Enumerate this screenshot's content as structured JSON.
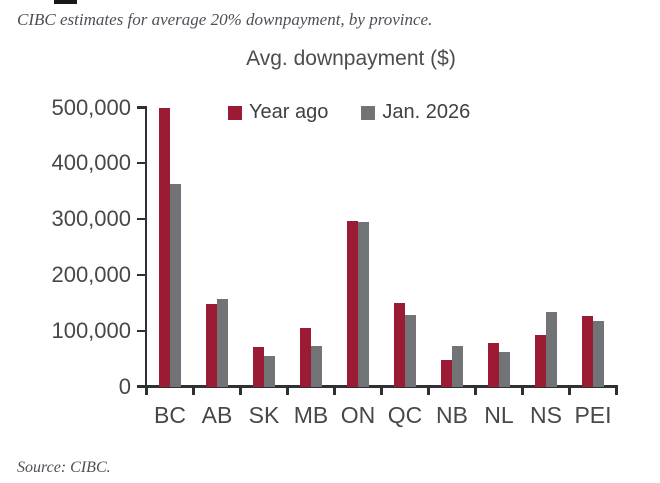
{
  "subtitle": "CIBC estimates for average 20% downpayment, by province.",
  "source_note": "Source: CIBC.",
  "colors": {
    "series_year_ago": "#9a1b33",
    "series_jan_2026": "#727376",
    "axis": "#2f3033",
    "label_text": "#47484b",
    "note_text": "#4b5057",
    "background": "#ffffff"
  },
  "chart_data": {
    "type": "bar",
    "title": "Avg. downpayment ($)",
    "categories": [
      "BC",
      "AB",
      "SK",
      "MB",
      "ON",
      "QC",
      "NB",
      "NL",
      "NS",
      "PEI"
    ],
    "series": [
      {
        "name": "Year ago",
        "color": "#9a1b33",
        "values": [
          500000,
          149000,
          72000,
          106000,
          298000,
          151000,
          48000,
          79000,
          94000,
          128000
        ]
      },
      {
        "name": "Jan. 2026",
        "color": "#727376",
        "values": [
          363000,
          157000,
          56000,
          74000,
          296000,
          129000,
          73000,
          63000,
          135000,
          119000
        ]
      }
    ],
    "xlabel": "",
    "ylabel": "",
    "ylim": [
      0,
      500000
    ],
    "ytick_step": 100000,
    "ytick_labels": [
      "0",
      "100,000",
      "200,000",
      "300,000",
      "400,000",
      "500,000"
    ],
    "grid": false,
    "legend_position": "top-inside"
  }
}
